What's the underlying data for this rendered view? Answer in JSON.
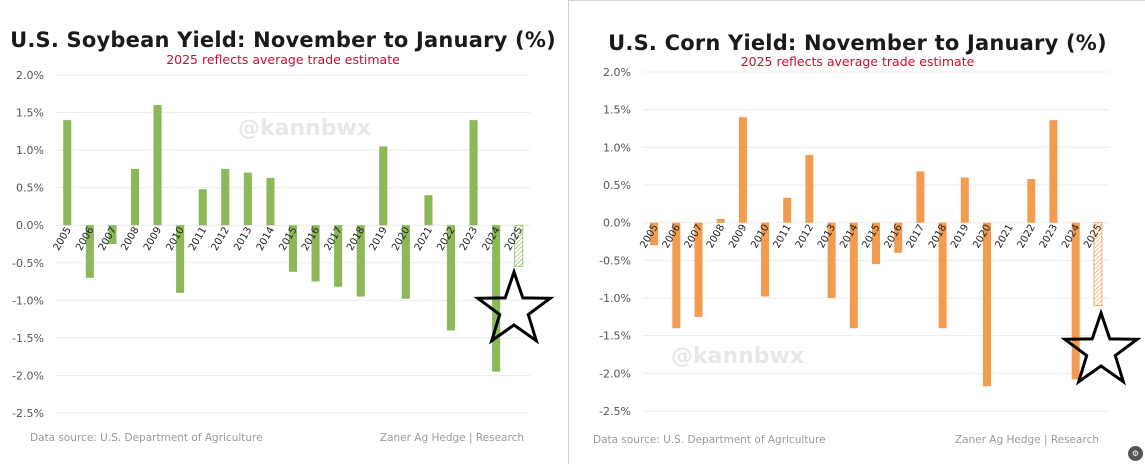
{
  "charts": [
    {
      "title": "U.S. Soybean Yield: November to January (%)",
      "subtitle": "2025 reflects average trade estimate",
      "source": "Data source: U.S. Department of Agriculture",
      "credit": "Zaner Ag Hedge | Research",
      "watermark": "@kannbwx",
      "color": "#8db85a",
      "estimate_category": "2025"
    },
    {
      "title": "U.S. Corn Yield: November to January (%)",
      "subtitle": "2025 reflects average trade estimate",
      "source": "Data source: U.S. Department of Agriculture",
      "credit": "Zaner Ag Hedge | Research",
      "watermark": "@kannbwx",
      "color": "#f39b4f",
      "estimate_category": "2025"
    }
  ],
  "chart_data": [
    {
      "type": "bar",
      "title": "U.S. Soybean Yield: November to January (%)",
      "categories": [
        "2005",
        "2006",
        "2007",
        "2008",
        "2009",
        "2010",
        "2011",
        "2012",
        "2013",
        "2014",
        "2015",
        "2016",
        "2017",
        "2018",
        "2019",
        "2020",
        "2021",
        "2022",
        "2023",
        "2024",
        "2025"
      ],
      "values": [
        1.4,
        -0.7,
        -0.25,
        0.75,
        1.6,
        -0.9,
        0.48,
        0.75,
        0.7,
        0.63,
        -0.62,
        -0.75,
        -0.82,
        -0.95,
        1.05,
        -0.98,
        0.4,
        -1.4,
        1.4,
        -1.95,
        -0.55
      ],
      "ylim": [
        -2.5,
        2.0
      ],
      "yticks": [
        "2.0%",
        "1.5%",
        "1.0%",
        "0.5%",
        "0.0%",
        "-0.5%",
        "-1.0%",
        "-1.5%",
        "-2.0%",
        "-2.5%"
      ],
      "xlabel": "",
      "ylabel": "",
      "grid": true
    },
    {
      "type": "bar",
      "title": "U.S. Corn Yield: November to January (%)",
      "categories": [
        "2005",
        "2006",
        "2007",
        "2008",
        "2009",
        "2010",
        "2011",
        "2012",
        "2013",
        "2014",
        "2015",
        "2016",
        "2017",
        "2018",
        "2019",
        "2020",
        "2021",
        "2022",
        "2023",
        "2024",
        "2025"
      ],
      "values": [
        -0.3,
        -1.4,
        -1.25,
        0.05,
        1.4,
        -0.98,
        0.33,
        0.9,
        -1.0,
        -1.4,
        -0.55,
        -0.4,
        0.68,
        -1.4,
        0.6,
        -2.17,
        0.0,
        0.58,
        1.36,
        -2.08,
        -1.1
      ],
      "ylim": [
        -2.5,
        2.0
      ],
      "yticks": [
        "2.0%",
        "1.5%",
        "1.0%",
        "0.5%",
        "0.0%",
        "-0.5%",
        "-1.0%",
        "-1.5%",
        "-2.0%",
        "-2.5%"
      ],
      "xlabel": "",
      "ylabel": "",
      "grid": true
    }
  ]
}
